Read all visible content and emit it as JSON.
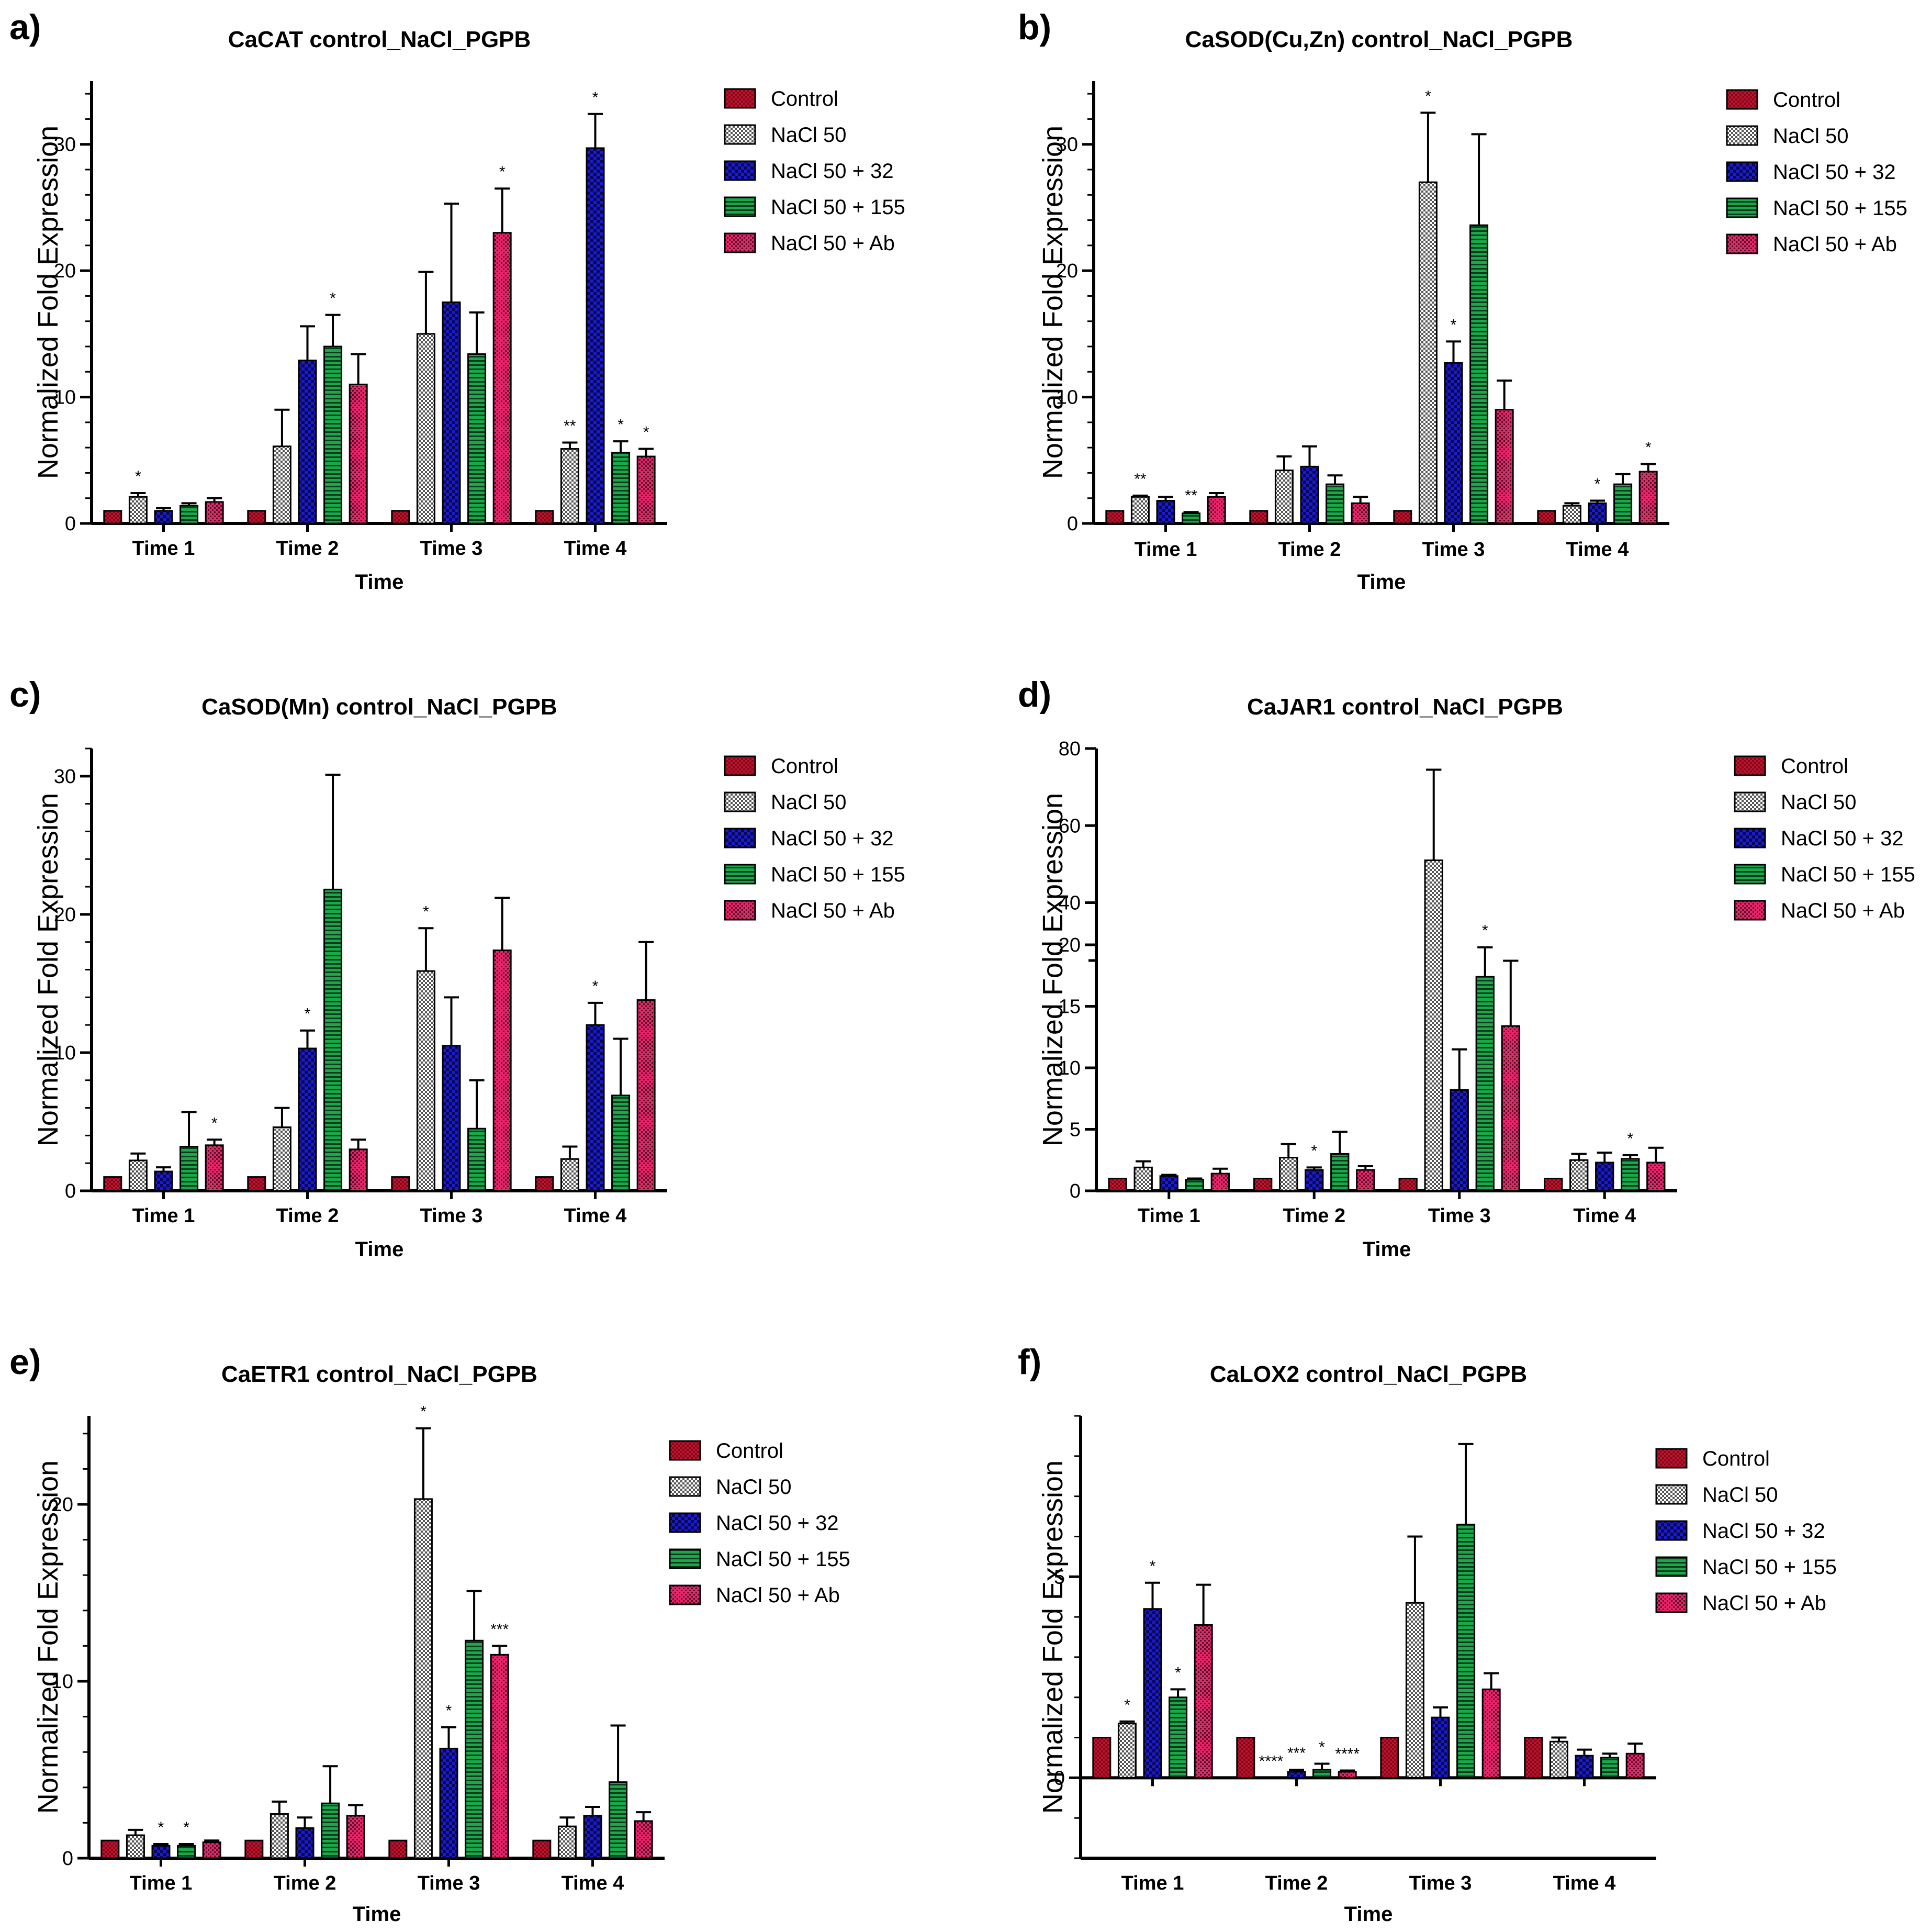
{
  "series_styles": [
    {
      "name": "Control",
      "color": "#c8102e",
      "pattern": "checker-red"
    },
    {
      "name": "NaCl 50",
      "color": "#808080",
      "pattern": "checker-grey"
    },
    {
      "name": "NaCl 50 + 32",
      "color": "#1a1ad6",
      "pattern": "checker-blue"
    },
    {
      "name": "NaCl 50 + 155",
      "color": "#1aa84a",
      "pattern": "stripe-green"
    },
    {
      "name": "NaCl 50 + Ab",
      "color": "#e8246a",
      "pattern": "dots-pink"
    }
  ],
  "chart_data": [
    {
      "panel": "a)",
      "type": "bar",
      "title": "CaCAT control_NaCl_PGPB",
      "xlabel": "Time",
      "ylabel": "Normalized Fold Expression",
      "categories": [
        "Time 1",
        "Time 2",
        "Time 3",
        "Time 4"
      ],
      "ylim": [
        0,
        35
      ],
      "yticks": [
        0,
        10,
        20,
        30
      ],
      "series": [
        {
          "name": "Control",
          "values": [
            1,
            1,
            1,
            1
          ],
          "errors": [
            0,
            0,
            0,
            0
          ],
          "stars": [
            "",
            "",
            "",
            ""
          ]
        },
        {
          "name": "NaCl 50",
          "values": [
            2.1,
            6.1,
            15,
            5.9
          ],
          "errors": [
            0.3,
            2.9,
            4.9,
            0.5
          ],
          "stars": [
            "*",
            "",
            "",
            "**"
          ]
        },
        {
          "name": "NaCl 50 + 32",
          "values": [
            1.0,
            12.9,
            17.5,
            29.7
          ],
          "errors": [
            0.2,
            2.7,
            7.8,
            2.7
          ],
          "stars": [
            "",
            "",
            "",
            "*"
          ]
        },
        {
          "name": "NaCl 50 + 155",
          "values": [
            1.4,
            14,
            13.4,
            5.6
          ],
          "errors": [
            0.2,
            2.5,
            3.3,
            0.9
          ],
          "stars": [
            "",
            "*",
            "",
            "*"
          ]
        },
        {
          "name": "NaCl 50 + Ab",
          "values": [
            1.7,
            11,
            23,
            5.3
          ],
          "errors": [
            0.3,
            2.4,
            3.5,
            0.6
          ],
          "stars": [
            "",
            "",
            "*",
            "*"
          ]
        }
      ]
    },
    {
      "panel": "b)",
      "type": "bar",
      "title": "CaSOD(Cu,Zn) control_NaCl_PGPB",
      "xlabel": "Time",
      "ylabel": "Normalized Fold Expression",
      "categories": [
        "Time 1",
        "Time 2",
        "Time 3",
        "Time 4"
      ],
      "ylim": [
        0,
        35
      ],
      "yticks": [
        0,
        10,
        20,
        30
      ],
      "series": [
        {
          "name": "Control",
          "values": [
            1,
            1,
            1,
            1
          ],
          "errors": [
            0,
            0,
            0,
            0
          ],
          "stars": [
            "",
            "",
            "",
            ""
          ]
        },
        {
          "name": "NaCl 50",
          "values": [
            2.1,
            4.2,
            27,
            1.4
          ],
          "errors": [
            0.1,
            1.1,
            5.5,
            0.2
          ],
          "stars": [
            "**",
            "",
            "*",
            ""
          ]
        },
        {
          "name": "NaCl 50 + 32",
          "values": [
            1.8,
            4.5,
            12.7,
            1.6
          ],
          "errors": [
            0.3,
            1.6,
            1.7,
            0.2
          ],
          "stars": [
            "",
            "",
            "*",
            "*"
          ]
        },
        {
          "name": "NaCl 50 + 155",
          "values": [
            0.8,
            3.1,
            23.6,
            3.1
          ],
          "errors": [
            0.1,
            0.7,
            7.2,
            0.8
          ],
          "stars": [
            "**",
            "",
            "",
            ""
          ]
        },
        {
          "name": "NaCl 50 + Ab",
          "values": [
            2.1,
            1.6,
            9,
            4.1
          ],
          "errors": [
            0.3,
            0.5,
            2.3,
            0.6
          ],
          "stars": [
            "",
            "",
            "",
            "*"
          ]
        }
      ]
    },
    {
      "panel": "c)",
      "type": "bar",
      "title": "CaSOD(Mn) control_NaCl_PGPB",
      "xlabel": "Time",
      "ylabel": "Normalized Fold Expression",
      "categories": [
        "Time 1",
        "Time 2",
        "Time 3",
        "Time 4"
      ],
      "ylim": [
        0,
        32
      ],
      "yticks": [
        0,
        10,
        20,
        30
      ],
      "series": [
        {
          "name": "Control",
          "values": [
            1,
            1,
            1,
            1
          ],
          "errors": [
            0,
            0,
            0,
            0
          ],
          "stars": [
            "",
            "",
            "",
            ""
          ]
        },
        {
          "name": "NaCl 50",
          "values": [
            2.2,
            4.6,
            15.9,
            2.3
          ],
          "errors": [
            0.5,
            1.4,
            3.1,
            0.9
          ],
          "stars": [
            "",
            "",
            "*",
            ""
          ]
        },
        {
          "name": "NaCl 50 + 32",
          "values": [
            1.4,
            10.3,
            10.5,
            12
          ],
          "errors": [
            0.3,
            1.3,
            3.5,
            1.6
          ],
          "stars": [
            "",
            "*",
            "",
            "*"
          ]
        },
        {
          "name": "NaCl 50 + 155",
          "values": [
            3.2,
            21.8,
            4.5,
            6.9
          ],
          "errors": [
            2.5,
            8.3,
            3.5,
            4.1
          ],
          "stars": [
            "",
            "",
            "",
            ""
          ]
        },
        {
          "name": "NaCl 50 + Ab",
          "values": [
            3.3,
            3.0,
            17.4,
            13.8
          ],
          "errors": [
            0.4,
            0.7,
            3.8,
            4.2
          ],
          "stars": [
            "*",
            "",
            "",
            ""
          ]
        }
      ]
    },
    {
      "panel": "d)",
      "type": "bar",
      "title": "CaJAR1 control_NaCl_PGPB",
      "xlabel": "Time",
      "ylabel": "Normalized Fold Expression",
      "categories": [
        "Time 1",
        "Time 2",
        "Time 3",
        "Time 4"
      ],
      "axis_break": {
        "lower": [
          0,
          20
        ],
        "upper": [
          25,
          80
        ]
      },
      "yticks_lower": [
        0,
        5,
        10,
        15,
        20
      ],
      "yticks_upper": [
        40,
        60,
        80
      ],
      "series": [
        {
          "name": "Control",
          "values": [
            1,
            1,
            1,
            1
          ],
          "errors": [
            0,
            0,
            0,
            0
          ],
          "stars": [
            "",
            "",
            "",
            ""
          ]
        },
        {
          "name": "NaCl 50",
          "values": [
            1.9,
            2.7,
            51,
            2.5
          ],
          "errors": [
            0.5,
            1.1,
            23.5,
            0.5
          ],
          "stars": [
            "",
            "",
            "",
            ""
          ]
        },
        {
          "name": "NaCl 50 + 32",
          "values": [
            1.2,
            1.7,
            8.2,
            2.3
          ],
          "errors": [
            0.1,
            0.2,
            3.3,
            0.8
          ],
          "stars": [
            "",
            "*",
            "",
            ""
          ]
        },
        {
          "name": "NaCl 50 + 155",
          "values": [
            0.9,
            3.0,
            17.4,
            2.6
          ],
          "errors": [
            0.1,
            1.8,
            2.4,
            0.3
          ],
          "stars": [
            "",
            "",
            "*",
            "*"
          ]
        },
        {
          "name": "NaCl 50 + Ab",
          "values": [
            1.4,
            1.7,
            13.4,
            2.3
          ],
          "errors": [
            0.4,
            0.3,
            5.3,
            1.2
          ],
          "stars": [
            "",
            "",
            "",
            ""
          ]
        }
      ]
    },
    {
      "panel": "e)",
      "type": "bar",
      "title": "CaETR1 control_NaCl_PGPB",
      "xlabel": "Time",
      "ylabel": "Normalized Fold Expression",
      "categories": [
        "Time 1",
        "Time 2",
        "Time 3",
        "Time 4"
      ],
      "ylim": [
        0,
        25
      ],
      "yticks": [
        0,
        10,
        20
      ],
      "series": [
        {
          "name": "Control",
          "values": [
            1,
            1,
            1,
            1
          ],
          "errors": [
            0,
            0,
            0,
            0
          ],
          "stars": [
            "",
            "",
            "",
            ""
          ]
        },
        {
          "name": "NaCl 50",
          "values": [
            1.3,
            2.5,
            20.3,
            1.8
          ],
          "errors": [
            0.3,
            0.7,
            4.0,
            0.5
          ],
          "stars": [
            "",
            "",
            "*",
            ""
          ]
        },
        {
          "name": "NaCl 50 + 32",
          "values": [
            0.7,
            1.7,
            6.2,
            2.4
          ],
          "errors": [
            0.1,
            0.6,
            1.2,
            0.5
          ],
          "stars": [
            "*",
            "",
            "*",
            ""
          ]
        },
        {
          "name": "NaCl 50 + 155",
          "values": [
            0.7,
            3.1,
            12.3,
            4.3
          ],
          "errors": [
            0.1,
            2.1,
            2.8,
            3.2
          ],
          "stars": [
            "*",
            "",
            "",
            ""
          ]
        },
        {
          "name": "NaCl 50 + Ab",
          "values": [
            0.9,
            2.4,
            11.5,
            2.1
          ],
          "errors": [
            0.1,
            0.6,
            0.5,
            0.5
          ],
          "stars": [
            "",
            "",
            "***",
            ""
          ]
        }
      ]
    },
    {
      "panel": "f)",
      "type": "bar",
      "title": "CaLOX2 control_NaCl_PGPB",
      "xlabel": "Time",
      "ylabel": "Normalized Fold Expression",
      "categories": [
        "Time 1",
        "Time 2",
        "Time 3",
        "Time 4"
      ],
      "ylim": [
        -2,
        9
      ],
      "yticks": [
        0,
        5
      ],
      "series": [
        {
          "name": "Control",
          "values": [
            1,
            1,
            1,
            1
          ],
          "errors": [
            0,
            0,
            0,
            0
          ],
          "stars": [
            "",
            "",
            "",
            ""
          ]
        },
        {
          "name": "NaCl 50",
          "values": [
            1.35,
            0.0,
            4.35,
            0.9
          ],
          "errors": [
            0.05,
            0,
            1.65,
            0.1
          ],
          "stars": [
            "*",
            "****",
            "",
            ""
          ]
        },
        {
          "name": "NaCl 50 + 32",
          "values": [
            4.2,
            0.15,
            1.5,
            0.55
          ],
          "errors": [
            0.65,
            0.05,
            0.25,
            0.15
          ],
          "stars": [
            "*",
            "***",
            "",
            ""
          ]
        },
        {
          "name": "NaCl 50 + 155",
          "values": [
            2.0,
            0.2,
            6.3,
            0.5
          ],
          "errors": [
            0.2,
            0.15,
            2.0,
            0.1
          ],
          "stars": [
            "*",
            "*",
            "",
            ""
          ]
        },
        {
          "name": "NaCl 50 + Ab",
          "values": [
            3.8,
            0.15,
            2.2,
            0.6
          ],
          "errors": [
            1.0,
            0.03,
            0.4,
            0.25
          ],
          "stars": [
            "",
            "****",
            "",
            ""
          ]
        }
      ]
    }
  ]
}
